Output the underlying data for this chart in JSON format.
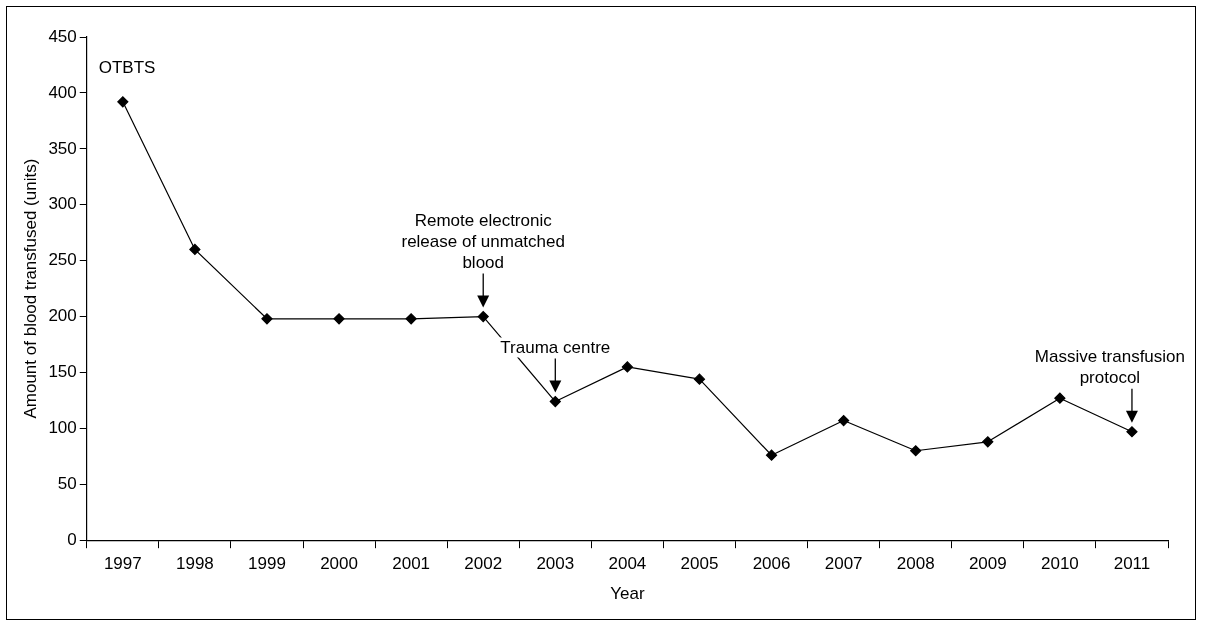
{
  "chart_data": {
    "type": "line",
    "xlabel": "Year",
    "ylabel": "Amount of blood transfused (units)",
    "categories": [
      "1997",
      "1998",
      "1999",
      "2000",
      "2001",
      "2002",
      "2003",
      "2004",
      "2005",
      "2006",
      "2007",
      "2008",
      "2009",
      "2010",
      "2011"
    ],
    "series": [
      {
        "color": "#000000",
        "values": [
          392,
          260,
          198,
          198,
          198,
          200,
          124,
          155,
          144,
          76,
          107,
          80,
          88,
          127,
          97
        ]
      }
    ],
    "ylim": [
      0,
      450
    ],
    "yticks": [
      0,
      50,
      100,
      150,
      200,
      250,
      300,
      350,
      400,
      450
    ],
    "grid": false,
    "legend": false,
    "marker": "diamond",
    "line_style": "solid",
    "annotations": [
      "OTBTS",
      {
        "text": "Remote electronic release of unmatched blood",
        "x": "2002",
        "y": 200
      },
      {
        "text": "Trauma centre",
        "x": "2003",
        "y": 124
      },
      {
        "text": "Massive transfusion protocol",
        "x": "2011",
        "y": 97
      }
    ]
  }
}
